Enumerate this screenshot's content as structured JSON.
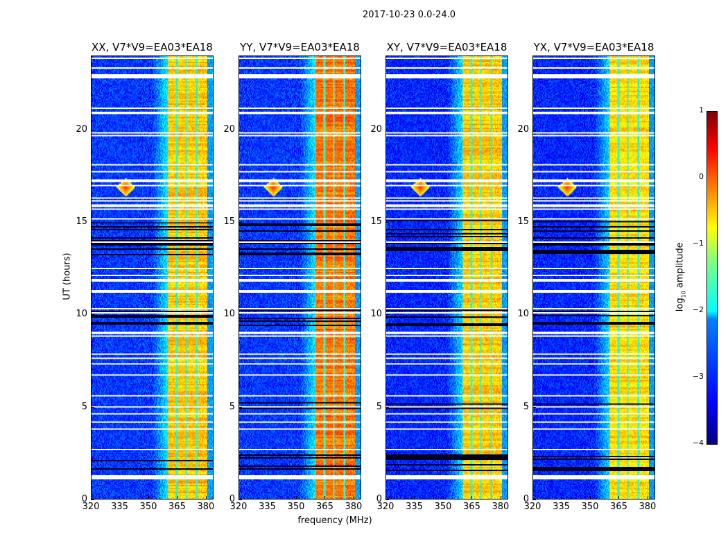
{
  "figure_title": "2017-10-23 0.0-24.0",
  "chart_data": {
    "type": "heatmap",
    "title": "2017-10-23 0.0-24.0",
    "xlabel": "frequency (MHz)",
    "ylabel": "UT (hours)",
    "xlim": [
      320,
      384
    ],
    "ylim": [
      0,
      24
    ],
    "xticks": [
      "320",
      "335",
      "350",
      "365",
      "380"
    ],
    "xtick_values": [
      320,
      335,
      350,
      365,
      380
    ],
    "yticks": [
      "0",
      "5",
      "10",
      "15",
      "20"
    ],
    "ytick_values": [
      0,
      5,
      10,
      15,
      20
    ],
    "panels": [
      {
        "title": "XX, V7*V9=EA03*EA18",
        "band_level": -0.6,
        "background_level": -3.1
      },
      {
        "title": "YY, V7*V9=EA03*EA18",
        "band_level": -0.2,
        "background_level": -3.1
      },
      {
        "title": "XY, V7*V9=EA03*EA18",
        "band_level": -0.6,
        "background_level": -3.2
      },
      {
        "title": "YX, V7*V9=EA03*EA18",
        "band_level": -0.7,
        "background_level": -3.2
      }
    ],
    "band_mhz": [
      360.5,
      381
    ],
    "band_notches_mhz": [
      365,
      370,
      375.5
    ],
    "flagged_hours": [
      [
        22.8,
        23.0
      ],
      [
        20.85,
        21.0
      ],
      [
        17.15,
        17.3
      ],
      [
        15.85,
        16.0
      ],
      [
        12.45,
        12.55
      ],
      [
        11.8,
        11.95
      ],
      [
        8.9,
        9.05
      ],
      [
        7.8,
        7.9
      ],
      [
        1.05,
        1.3
      ]
    ],
    "dark_rows_hours": [
      [
        13.2,
        15.2
      ],
      [
        9.4,
        10.3
      ],
      [
        1.5,
        2.4
      ],
      [
        4.9,
        5.3
      ]
    ],
    "rfi_spike": {
      "freq_mhz": 338,
      "hour": 16.9
    },
    "colorbar": {
      "label": "log10 amplitude",
      "label_base": "log",
      "label_sub": "10",
      "label_rest": " amplitude",
      "range": [
        -4,
        1
      ],
      "ticks": [
        "1",
        "0",
        "−1",
        "−2",
        "−3",
        "−4"
      ],
      "tick_values": [
        1,
        0,
        -1,
        -2,
        -3,
        -4
      ],
      "colormap": "jet"
    }
  }
}
